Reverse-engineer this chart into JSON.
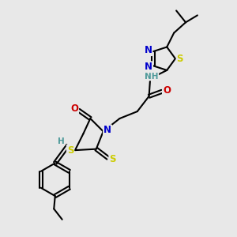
{
  "bg_color": "#e8e8e8",
  "atom_colors": {
    "C": "#000000",
    "N": "#0000cc",
    "O": "#cc0000",
    "S": "#cccc00",
    "H": "#4d9999"
  },
  "bond_color": "#000000",
  "bond_width": 1.5
}
